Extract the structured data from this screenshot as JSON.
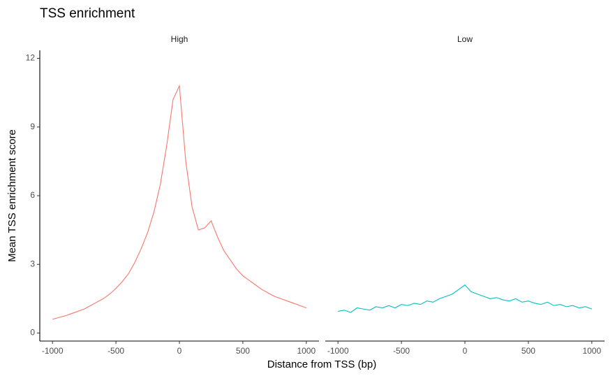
{
  "chart_data": {
    "type": "line",
    "title": "TSS enrichment",
    "x_label": "Distance from TSS (bp)",
    "y_label": "Mean TSS enrichment score",
    "x": [
      -1000,
      -950,
      -900,
      -850,
      -800,
      -750,
      -700,
      -650,
      -600,
      -550,
      -500,
      -450,
      -400,
      -350,
      -300,
      -250,
      -200,
      -150,
      -100,
      -50,
      0,
      50,
      100,
      150,
      200,
      250,
      300,
      350,
      400,
      450,
      500,
      550,
      600,
      650,
      700,
      750,
      800,
      850,
      900,
      950,
      1000
    ],
    "xlim": [
      -1100,
      1100
    ],
    "xticks": [
      -1000,
      -500,
      0,
      500,
      1000
    ],
    "ylim": [
      -0.35,
      12.35
    ],
    "yticks": [
      0,
      3,
      6,
      9,
      12
    ],
    "series": [
      {
        "name": "High",
        "color": "#f8766d",
        "values": [
          0.6,
          0.68,
          0.75,
          0.85,
          0.95,
          1.05,
          1.2,
          1.35,
          1.5,
          1.7,
          1.95,
          2.25,
          2.6,
          3.1,
          3.7,
          4.4,
          5.3,
          6.5,
          8.2,
          10.2,
          10.8,
          7.5,
          5.5,
          4.5,
          4.6,
          4.9,
          4.2,
          3.6,
          3.2,
          2.8,
          2.5,
          2.3,
          2.1,
          1.9,
          1.75,
          1.6,
          1.5,
          1.4,
          1.3,
          1.2,
          1.1
        ]
      },
      {
        "name": "Low",
        "color": "#00bfc4",
        "values": [
          0.95,
          1.0,
          0.9,
          1.1,
          1.05,
          1.0,
          1.15,
          1.1,
          1.2,
          1.1,
          1.25,
          1.2,
          1.3,
          1.25,
          1.4,
          1.35,
          1.5,
          1.6,
          1.7,
          1.9,
          2.1,
          1.8,
          1.7,
          1.6,
          1.5,
          1.55,
          1.45,
          1.4,
          1.5,
          1.35,
          1.4,
          1.3,
          1.25,
          1.35,
          1.2,
          1.25,
          1.15,
          1.2,
          1.1,
          1.15,
          1.05
        ]
      }
    ]
  }
}
